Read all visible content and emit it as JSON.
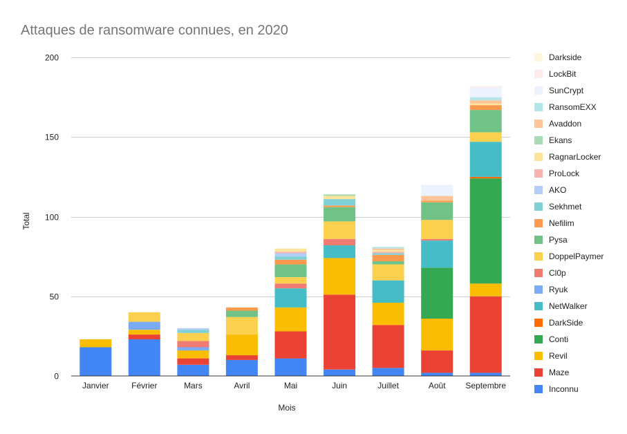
{
  "chart_data": {
    "type": "bar",
    "stacked": true,
    "title": "Attaques de ransomware connues, en 2020",
    "xlabel": "Mois",
    "ylabel": "Total",
    "ylim": [
      0,
      200
    ],
    "yticks": [
      0,
      50,
      100,
      150,
      200
    ],
    "grid": true,
    "legend_position": "right",
    "categories": [
      "Janvier",
      "Février",
      "Mars",
      "Avril",
      "Mai",
      "Juin",
      "Juillet",
      "Août",
      "Septembre"
    ],
    "series": [
      {
        "name": "Inconnu",
        "color": "#4285f4",
        "values": [
          18,
          23,
          7,
          10,
          11,
          4,
          5,
          2,
          2
        ]
      },
      {
        "name": "Maze",
        "color": "#ea4335",
        "values": [
          0,
          3,
          4,
          3,
          17,
          47,
          27,
          14,
          48
        ]
      },
      {
        "name": "Revil",
        "color": "#fbbc04",
        "values": [
          5,
          3,
          5,
          13,
          15,
          23,
          14,
          20,
          8
        ]
      },
      {
        "name": "Conti",
        "color": "#34a853",
        "values": [
          0,
          0,
          0,
          0,
          0,
          0,
          0,
          32,
          66
        ]
      },
      {
        "name": "DarkSide",
        "color": "#ff6d01",
        "values": [
          0,
          0,
          0,
          0,
          0,
          0,
          0,
          0,
          1
        ]
      },
      {
        "name": "NetWalker",
        "color": "#46bdc6",
        "values": [
          0,
          0,
          0,
          0,
          12,
          8,
          14,
          17,
          22
        ]
      },
      {
        "name": "Ryuk",
        "color": "#7baaf7",
        "values": [
          0,
          5,
          2,
          0,
          0,
          0,
          0,
          0,
          0
        ]
      },
      {
        "name": "Cl0p",
        "color": "#f07b72",
        "values": [
          0,
          0,
          4,
          0,
          3,
          4,
          0,
          1,
          0
        ]
      },
      {
        "name": "DoppelPaymer",
        "color": "#fcd04f",
        "values": [
          0,
          6,
          5,
          11,
          4,
          11,
          10,
          12,
          6
        ]
      },
      {
        "name": "Pysa",
        "color": "#71c287",
        "values": [
          0,
          0,
          0,
          4,
          8,
          9,
          2,
          11,
          14
        ]
      },
      {
        "name": "Nefilim",
        "color": "#ff994d",
        "values": [
          0,
          0,
          0,
          2,
          3,
          1,
          4,
          1,
          3
        ]
      },
      {
        "name": "Sekhmet",
        "color": "#7ed1d7",
        "values": [
          0,
          0,
          2,
          0,
          2,
          4,
          1,
          0,
          0
        ]
      },
      {
        "name": "AKO",
        "color": "#b3cefb",
        "values": [
          0,
          0,
          1,
          0,
          2,
          0,
          0,
          0,
          0
        ]
      },
      {
        "name": "ProLock",
        "color": "#f7b4ae",
        "values": [
          0,
          0,
          0,
          0,
          1,
          0,
          1,
          0,
          0
        ]
      },
      {
        "name": "RagnarLocker",
        "color": "#fde49b",
        "values": [
          0,
          0,
          0,
          0,
          2,
          2,
          1,
          0,
          1
        ]
      },
      {
        "name": "Ekans",
        "color": "#a9dcb5",
        "values": [
          0,
          0,
          0,
          0,
          0,
          1,
          0,
          0,
          0
        ]
      },
      {
        "name": "Avaddon",
        "color": "#ffc599",
        "values": [
          0,
          0,
          0,
          0,
          0,
          0,
          1,
          3,
          2
        ]
      },
      {
        "name": "RansomEXX",
        "color": "#b5e5e8",
        "values": [
          0,
          0,
          0,
          0,
          0,
          0,
          1,
          0,
          2
        ]
      },
      {
        "name": "SunCrypt",
        "color": "#ecf3fe",
        "values": [
          0,
          0,
          0,
          0,
          0,
          0,
          0,
          7,
          6
        ]
      },
      {
        "name": "LockBit",
        "color": "#fdeceb",
        "values": [
          0,
          0,
          0,
          0,
          0,
          0,
          0,
          0,
          1
        ]
      },
      {
        "name": "Darkside",
        "color": "#fef7e0",
        "values": [
          0,
          0,
          0,
          0,
          0,
          0,
          0,
          0,
          0
        ]
      }
    ]
  }
}
